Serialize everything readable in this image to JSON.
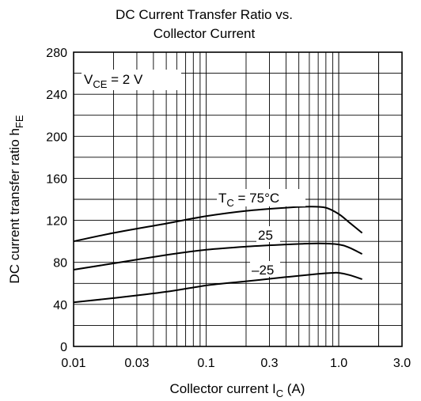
{
  "chart_data": {
    "type": "line",
    "title_lines": [
      "DC Current Transfer Ratio vs.",
      "Collector Current"
    ],
    "x_axis": {
      "scale": "log",
      "range": [
        0.01,
        3.0
      ],
      "tick_values": [
        0.01,
        0.03,
        0.1,
        0.3,
        1.0,
        3.0
      ],
      "tick_labels": [
        "0.01",
        "0.03",
        "0.1",
        "0.3",
        "1.0",
        "3.0"
      ],
      "label_main": "Collector current  I",
      "label_sub": "C",
      "label_unit": "  (A)"
    },
    "y_axis": {
      "scale": "linear",
      "range": [
        0,
        280
      ],
      "tick_values": [
        0,
        40,
        80,
        120,
        160,
        200,
        240,
        280
      ],
      "tick_labels": [
        "0",
        "40",
        "80",
        "120",
        "160",
        "200",
        "240",
        "280"
      ],
      "grid_step": 20,
      "label_main": "DC current transfer ratio  h",
      "label_sub": "FE"
    },
    "grid": true,
    "condition": {
      "main": "V",
      "sub": "CE",
      "rest": " = 2 V"
    },
    "series": [
      {
        "label_main": "T",
        "label_sub": "C",
        "label_rest": " = 75°C",
        "x": [
          0.01,
          0.02,
          0.05,
          0.1,
          0.2,
          0.4,
          0.6,
          0.8,
          1.0,
          1.2,
          1.5
        ],
        "y": [
          100,
          108,
          117,
          124,
          129,
          132,
          133,
          132,
          126,
          118,
          108
        ]
      },
      {
        "label_main": "25",
        "label_sub": "",
        "label_rest": "",
        "x": [
          0.01,
          0.02,
          0.05,
          0.1,
          0.2,
          0.4,
          0.7,
          1.0,
          1.2,
          1.5
        ],
        "y": [
          73,
          79,
          87,
          92,
          95,
          97,
          98,
          97,
          94,
          88
        ]
      },
      {
        "label_main": "–25",
        "label_sub": "",
        "label_rest": "",
        "x": [
          0.01,
          0.02,
          0.05,
          0.1,
          0.2,
          0.4,
          0.7,
          0.9,
          1.0,
          1.2,
          1.5
        ],
        "y": [
          42,
          46,
          52,
          58,
          62,
          66,
          69,
          70,
          70,
          68,
          64
        ]
      }
    ]
  }
}
